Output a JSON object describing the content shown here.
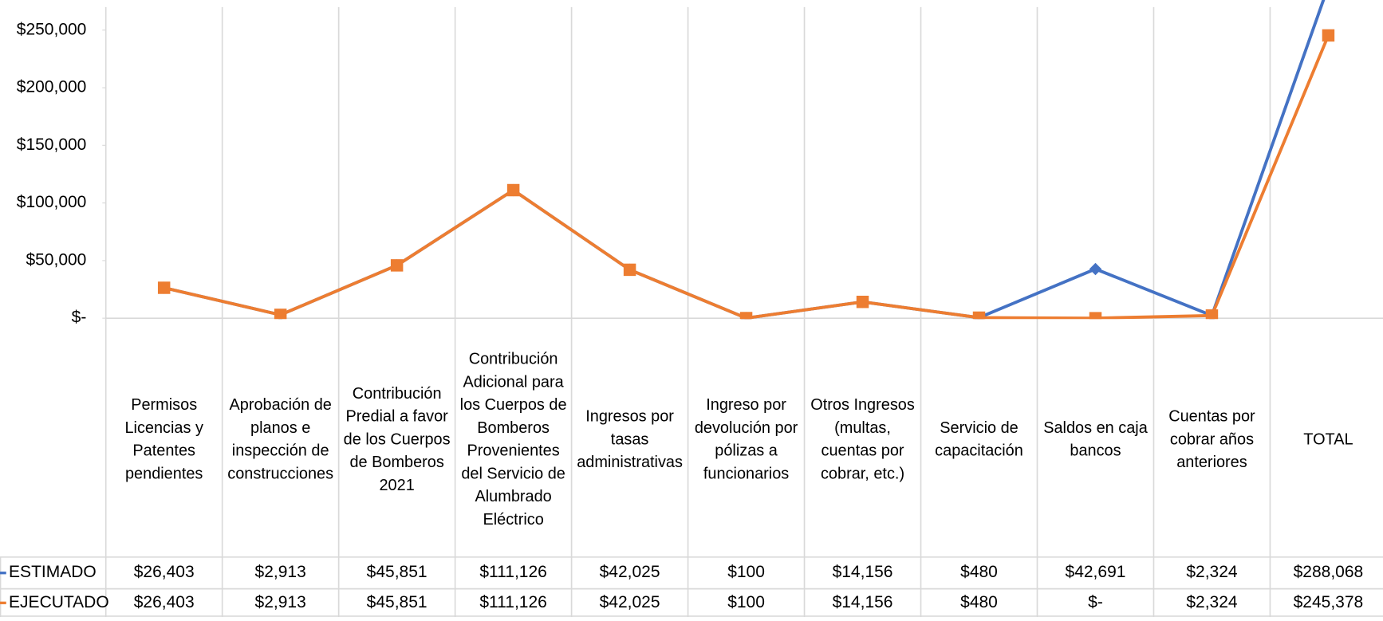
{
  "chart_data": {
    "type": "line",
    "categories": [
      "Permisos Licencias y Patentes pendientes",
      "Aprobación de planos e inspección de construcciones",
      "Contribución Predial a favor de los Cuerpos de Bomberos 2021",
      "Contribución Adicional para los Cuerpos de Bomberos Provenientes del Servicio de Alumbrado Eléctrico",
      "Ingresos por tasas administrativas",
      "Ingreso por devolución por pólizas a funcionarios",
      "Otros Ingresos (multas, cuentas por cobrar, etc.)",
      "Servicio de capacitación",
      "Saldos en caja bancos",
      "Cuentas por cobrar años anteriores",
      "TOTAL"
    ],
    "series": [
      {
        "name": "ESTIMADO",
        "color": "#4472c4",
        "values": [
          26403,
          2913,
          45851,
          111126,
          42025,
          100,
          14156,
          480,
          42691,
          2324,
          288068
        ],
        "value_labels": [
          "$26,403",
          "$2,913",
          "$45,851",
          "$111,126",
          "$42,025",
          "$100",
          "$14,156",
          "$480",
          "$42,691",
          "$2,324",
          "$288,068"
        ]
      },
      {
        "name": "EJECUTADO",
        "color": "#ed7d31",
        "values": [
          26403,
          2913,
          45851,
          111126,
          42025,
          100,
          14156,
          480,
          0,
          2324,
          245378
        ],
        "value_labels": [
          "$26,403",
          "$2,913",
          "$45,851",
          "$111,126",
          "$42,025",
          "$100",
          "$14,156",
          "$480",
          "$-",
          "$2,324",
          "$245,378"
        ]
      }
    ],
    "ylim": [
      0,
      270000
    ],
    "yticks": [
      {
        "value": 0,
        "label": "$-"
      },
      {
        "value": 50000,
        "label": "$50,000"
      },
      {
        "value": 100000,
        "label": "$100,000"
      },
      {
        "value": 150000,
        "label": "$150,000"
      },
      {
        "value": 200000,
        "label": "$200,000"
      },
      {
        "value": 250000,
        "label": "$250,000"
      }
    ]
  }
}
